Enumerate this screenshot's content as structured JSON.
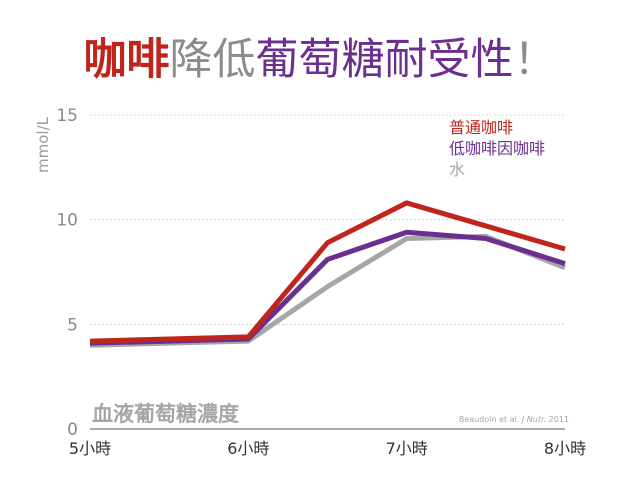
{
  "title": {
    "part1": "咖啡",
    "part2": "降低",
    "part3": "葡萄糖耐受性",
    "part4": "！",
    "colors": {
      "part1": "#c0251c",
      "part2": "#8c8c8c",
      "part3": "#6b2f8f",
      "part4": "#8c8c8c"
    }
  },
  "chart_data": {
    "type": "line",
    "title": "咖啡降低葡萄糖耐受性！",
    "ylabel": "mmol/L",
    "xlabel": "",
    "x": [
      "5小時",
      "5.5",
      "6小時",
      "6.5",
      "7小時",
      "7.5",
      "8小時"
    ],
    "x_tick_labels": [
      "5小時",
      "6小時",
      "7小時",
      "8小時"
    ],
    "y_ticks": [
      "0",
      "5",
      "10",
      "15"
    ],
    "ylim": [
      0,
      15
    ],
    "grid": true,
    "legend_position": "top-right",
    "series": [
      {
        "name": "普通咖啡",
        "color": "#c0251c",
        "values": [
          4.2,
          4.3,
          4.4,
          8.9,
          10.8,
          9.7,
          8.6
        ]
      },
      {
        "name": "低咖啡因咖啡",
        "color": "#6b2f8f",
        "values": [
          4.1,
          4.2,
          4.3,
          8.1,
          9.4,
          9.1,
          7.9
        ]
      },
      {
        "name": "水",
        "color": "#a6a6a6",
        "values": [
          4.0,
          4.1,
          4.2,
          6.8,
          9.1,
          9.2,
          7.7
        ]
      }
    ],
    "annotation": "血液葡萄糖濃度",
    "citation_prefix": "Beaudoin et al. ",
    "citation_journal": "J Nutr.",
    "citation_suffix": " 2011"
  }
}
